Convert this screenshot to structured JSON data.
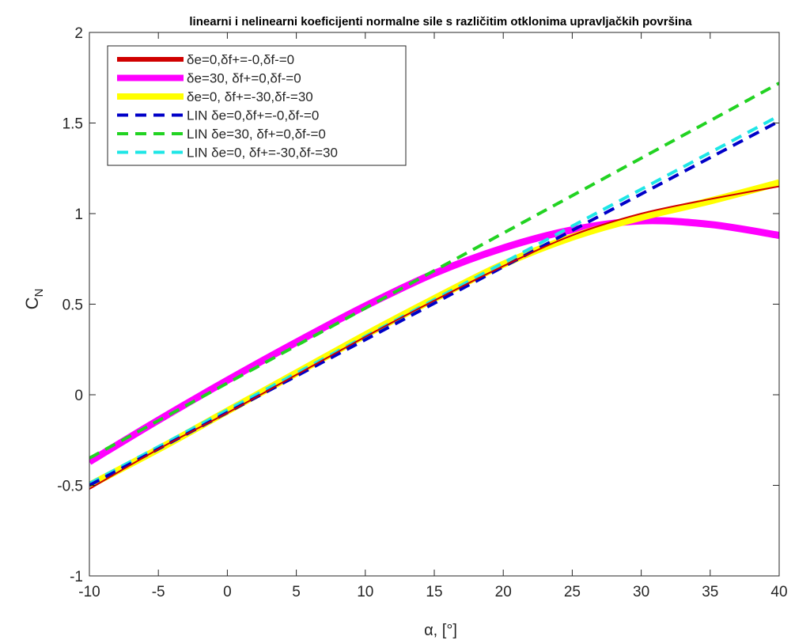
{
  "chart_data": {
    "type": "line",
    "title": "linearni i nelinearni koeficijenti normalne sile s različitim otklonima upravljačkih površina",
    "xlabel": "α, [°]",
    "ylabel": "C",
    "ylabel_sub": "N",
    "xlim": [
      -10,
      40
    ],
    "ylim": [
      -1,
      2
    ],
    "xticks": [
      -10,
      -5,
      0,
      5,
      10,
      15,
      20,
      25,
      30,
      35,
      40
    ],
    "yticks": [
      -1,
      -0.5,
      0,
      0.5,
      1,
      1.5,
      2
    ],
    "grid": false,
    "legend_position": "top-left",
    "series": [
      {
        "name": "δe=0,δf+=-0,δf-=0",
        "color": "#d00000",
        "style": "solid",
        "width": "thin",
        "x": [
          -10,
          -5,
          0,
          5,
          10,
          15,
          20,
          25,
          30,
          35,
          40
        ],
        "y": [
          -0.52,
          -0.3,
          -0.1,
          0.11,
          0.32,
          0.52,
          0.71,
          0.88,
          1.0,
          1.08,
          1.15
        ]
      },
      {
        "name": "δe=30, δf+=0,δf-=0",
        "color": "#ff00ff",
        "style": "solid",
        "width": "thick",
        "x": [
          -10,
          -5,
          0,
          5,
          10,
          15,
          20,
          25,
          30,
          35,
          40
        ],
        "y": [
          -0.37,
          -0.14,
          0.08,
          0.29,
          0.49,
          0.67,
          0.81,
          0.91,
          0.96,
          0.94,
          0.88
        ]
      },
      {
        "name": "δe=0, δf+=-30,δf-=30",
        "color": "#ffff00",
        "style": "solid",
        "width": "thick",
        "x": [
          -10,
          -5,
          0,
          5,
          10,
          15,
          20,
          25,
          30,
          35,
          40
        ],
        "y": [
          -0.5,
          -0.3,
          -0.09,
          0.12,
          0.33,
          0.53,
          0.72,
          0.87,
          0.98,
          1.07,
          1.17
        ]
      },
      {
        "name": "LIN δe=0,δf+=-0,δf-=0",
        "color": "#0000c8",
        "style": "dashed",
        "width": "medium",
        "x": [
          -10,
          40
        ],
        "y": [
          -0.5,
          1.51
        ]
      },
      {
        "name": "LIN δe=30, δf+=0,δf-=0",
        "color": "#22d322",
        "style": "dashed",
        "width": "medium",
        "x": [
          -10,
          40
        ],
        "y": [
          -0.35,
          1.72
        ]
      },
      {
        "name": "LIN δe=0, δf+=-30,δf-=30",
        "color": "#1ee6e6",
        "style": "dashed",
        "width": "medium",
        "x": [
          -10,
          40
        ],
        "y": [
          -0.49,
          1.54
        ]
      }
    ]
  }
}
